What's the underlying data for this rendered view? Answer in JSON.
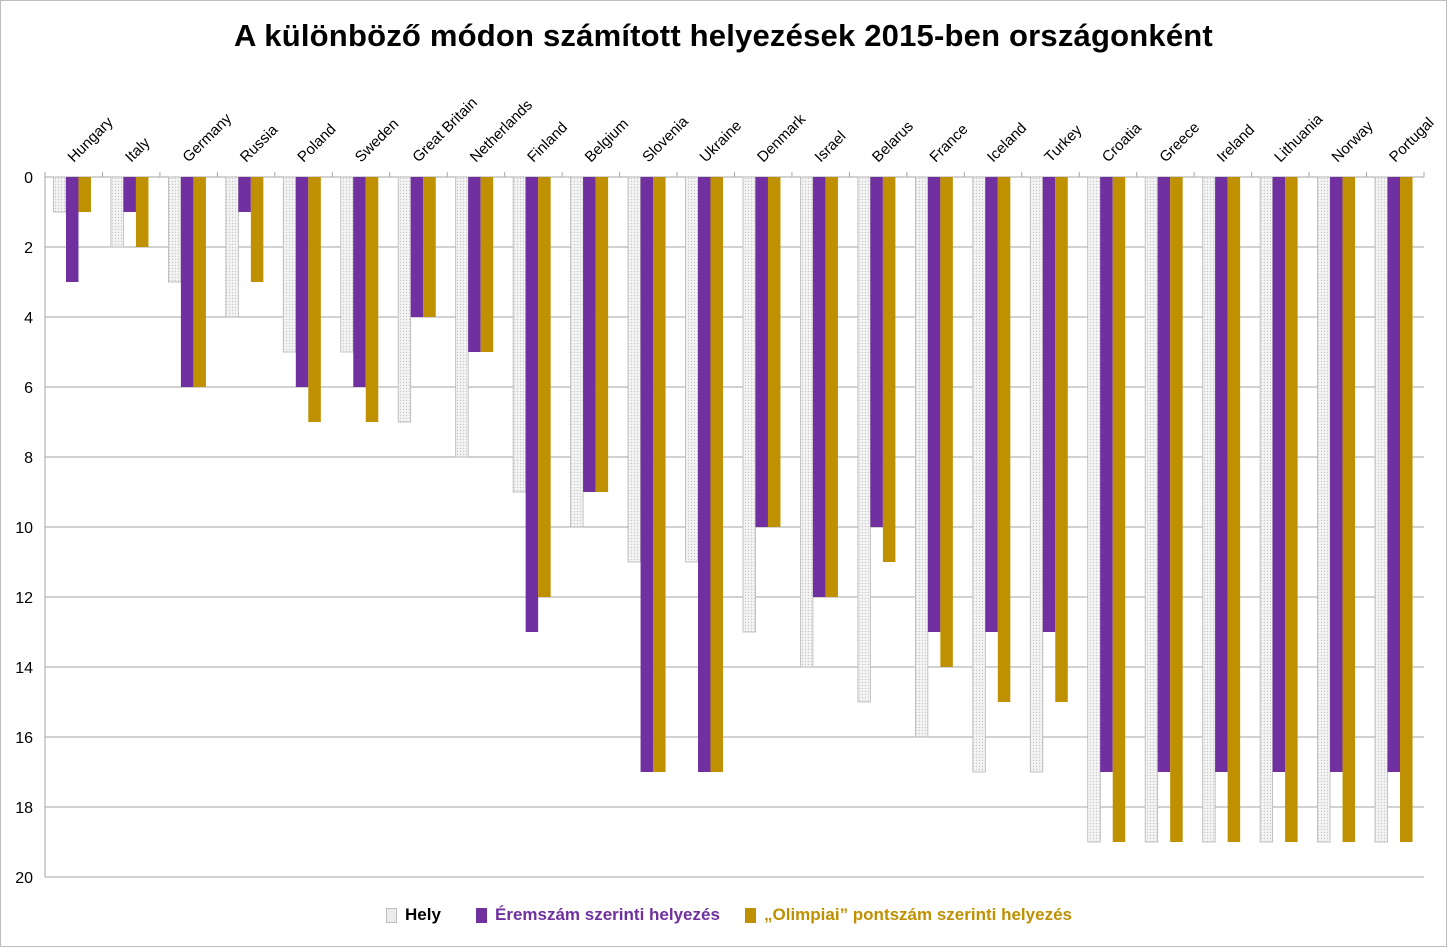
{
  "chart_data": {
    "type": "bar",
    "title": "A különböző módon számított helyezések 2015-ben országonként",
    "categories": [
      "Hungary",
      "Italy",
      "Germany",
      "Russia",
      "Poland",
      "Sweden",
      "Great Britain",
      "Netherlands",
      "Finland",
      "Belgium",
      "Slovenia",
      "Ukraine",
      "Denmark",
      "Israel",
      "Belarus",
      "France",
      "Iceland",
      "Turkey",
      "Croatia",
      "Greece",
      "Ireland",
      "Lithuania",
      "Norway",
      "Portugal"
    ],
    "series": [
      {
        "name": "Hely",
        "color": "#ececec",
        "values": [
          1,
          2,
          3,
          4,
          5,
          5,
          7,
          8,
          9,
          10,
          11,
          11,
          13,
          14,
          15,
          16,
          17,
          17,
          19,
          19,
          19,
          19,
          19,
          19
        ]
      },
      {
        "name": "Éremszám szerinti helyezés",
        "color": "#7030a0",
        "values": [
          3,
          1,
          6,
          1,
          6,
          6,
          4,
          5,
          13,
          9,
          17,
          17,
          10,
          12,
          10,
          13,
          13,
          13,
          17,
          17,
          17,
          17,
          17,
          17
        ]
      },
      {
        "name": "„Olimpiai” pontszám szerinti helyezés",
        "color": "#bf9000",
        "values": [
          1,
          2,
          6,
          3,
          7,
          7,
          4,
          5,
          12,
          9,
          17,
          17,
          10,
          12,
          11,
          14,
          15,
          15,
          19,
          19,
          19,
          19,
          19,
          19
        ]
      }
    ],
    "ylim": [
      0,
      20
    ],
    "y_ticks": [
      0,
      2,
      4,
      6,
      8,
      10,
      12,
      14,
      16,
      18,
      20
    ],
    "y_reversed": true,
    "grid": true,
    "legend_position": "bottom",
    "xlabel": "",
    "ylabel": ""
  }
}
